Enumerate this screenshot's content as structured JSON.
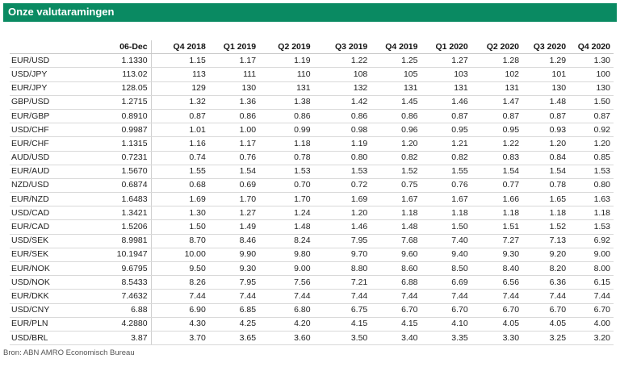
{
  "title": "Onze valutaramingen",
  "columns": [
    "",
    "06-Dec",
    "Q4 2018",
    "Q1 2019",
    "Q2 2019",
    "Q3 2019",
    "Q4 2019",
    "Q1 2020",
    "Q2 2020",
    "Q3 2020",
    "Q4 2020"
  ],
  "rows": [
    [
      "EUR/USD",
      "1.1330",
      "1.15",
      "1.17",
      "1.19",
      "1.22",
      "1.25",
      "1.27",
      "1.28",
      "1.29",
      "1.30"
    ],
    [
      "USD/JPY",
      "113.02",
      "113",
      "111",
      "110",
      "108",
      "105",
      "103",
      "102",
      "101",
      "100"
    ],
    [
      "EUR/JPY",
      "128.05",
      "129",
      "130",
      "131",
      "132",
      "131",
      "131",
      "131",
      "130",
      "130"
    ],
    [
      "GBP/USD",
      "1.2715",
      "1.32",
      "1.36",
      "1.38",
      "1.42",
      "1.45",
      "1.46",
      "1.47",
      "1.48",
      "1.50"
    ],
    [
      "EUR/GBP",
      "0.8910",
      "0.87",
      "0.86",
      "0.86",
      "0.86",
      "0.86",
      "0.87",
      "0.87",
      "0.87",
      "0.87"
    ],
    [
      "USD/CHF",
      "0.9987",
      "1.01",
      "1.00",
      "0.99",
      "0.98",
      "0.96",
      "0.95",
      "0.95",
      "0.93",
      "0.92"
    ],
    [
      "EUR/CHF",
      "1.1315",
      "1.16",
      "1.17",
      "1.18",
      "1.19",
      "1.20",
      "1.21",
      "1.22",
      "1.20",
      "1.20"
    ],
    [
      "AUD/USD",
      "0.7231",
      "0.74",
      "0.76",
      "0.78",
      "0.80",
      "0.82",
      "0.82",
      "0.83",
      "0.84",
      "0.85"
    ],
    [
      "EUR/AUD",
      "1.5670",
      "1.55",
      "1.54",
      "1.53",
      "1.53",
      "1.52",
      "1.55",
      "1.54",
      "1.54",
      "1.53"
    ],
    [
      "NZD/USD",
      "0.6874",
      "0.68",
      "0.69",
      "0.70",
      "0.72",
      "0.75",
      "0.76",
      "0.77",
      "0.78",
      "0.80"
    ],
    [
      "EUR/NZD",
      "1.6483",
      "1.69",
      "1.70",
      "1.70",
      "1.69",
      "1.67",
      "1.67",
      "1.66",
      "1.65",
      "1.63"
    ],
    [
      "USD/CAD",
      "1.3421",
      "1.30",
      "1.27",
      "1.24",
      "1.20",
      "1.18",
      "1.18",
      "1.18",
      "1.18",
      "1.18"
    ],
    [
      "EUR/CAD",
      "1.5206",
      "1.50",
      "1.49",
      "1.48",
      "1.46",
      "1.48",
      "1.50",
      "1.51",
      "1.52",
      "1.53"
    ],
    [
      "USD/SEK",
      "8.9981",
      "8.70",
      "8.46",
      "8.24",
      "7.95",
      "7.68",
      "7.40",
      "7.27",
      "7.13",
      "6.92"
    ],
    [
      "EUR/SEK",
      "10.1947",
      "10.00",
      "9.90",
      "9.80",
      "9.70",
      "9.60",
      "9.40",
      "9.30",
      "9.20",
      "9.00"
    ],
    [
      "EUR/NOK",
      "9.6795",
      "9.50",
      "9.30",
      "9.00",
      "8.80",
      "8.60",
      "8.50",
      "8.40",
      "8.20",
      "8.00"
    ],
    [
      "USD/NOK",
      "8.5433",
      "8.26",
      "7.95",
      "7.56",
      "7.21",
      "6.88",
      "6.69",
      "6.56",
      "6.36",
      "6.15"
    ],
    [
      "EUR/DKK",
      "7.4632",
      "7.44",
      "7.44",
      "7.44",
      "7.44",
      "7.44",
      "7.44",
      "7.44",
      "7.44",
      "7.44"
    ],
    [
      "USD/CNY",
      "6.88",
      "6.90",
      "6.85",
      "6.80",
      "6.75",
      "6.70",
      "6.70",
      "6.70",
      "6.70",
      "6.70"
    ],
    [
      "EUR/PLN",
      "4.2880",
      "4.30",
      "4.25",
      "4.20",
      "4.15",
      "4.15",
      "4.10",
      "4.05",
      "4.05",
      "4.00"
    ],
    [
      "USD/BRL",
      "3.87",
      "3.70",
      "3.65",
      "3.60",
      "3.50",
      "3.40",
      "3.35",
      "3.30",
      "3.25",
      "3.20"
    ]
  ],
  "source": "Bron: ABN AMRO Economisch Bureau",
  "colors": {
    "header_bar": "#0a8a62",
    "title_text": "#ffffff"
  }
}
